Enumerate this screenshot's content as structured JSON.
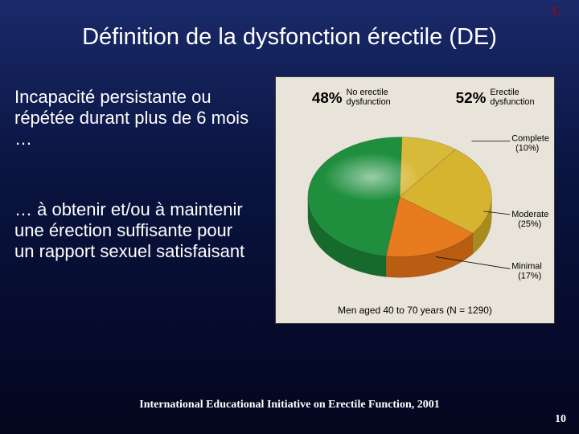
{
  "corner_letter": "U",
  "title": "Définition de la dysfonction érectile (DE)",
  "paragraph1": "Incapacité persistante ou répétée durant plus de 6 mois …",
  "paragraph2": "… à obtenir et/ou à maintenir une érection suffisante pour un rapport sexuel satisfaisant",
  "citation": "International Educational Initiative on Erectile Function, 2001",
  "page_number": "10",
  "chart": {
    "type": "pie",
    "background_color": "#e8e4da",
    "caption": "Men aged 40 to 70 years (N = 1290)",
    "caption_fontsize": 12,
    "left_pct_label": "48%",
    "left_pct_sub1": "No erectile",
    "left_pct_sub2": "dysfunction",
    "right_pct_label": "52%",
    "right_pct_sub1": "Erectile",
    "right_pct_sub2": "dysfunction",
    "slices": [
      {
        "name": "No erectile dysfunction",
        "value": 48,
        "fill": "#1f8f3e",
        "side": "#156a2c"
      },
      {
        "name": "Complete",
        "value": 10,
        "fill": "#d8ba3a",
        "side": "#b39726",
        "label_l1": "Complete",
        "label_l2": "(10%)"
      },
      {
        "name": "Moderate",
        "value": 25,
        "fill": "#d6b430",
        "side": "#a88b1f",
        "label_l1": "Moderate",
        "label_l2": "(25%)"
      },
      {
        "name": "Minimal",
        "value": 17,
        "fill": "#e87a1f",
        "side": "#b85d12",
        "label_l1": "Minimal",
        "label_l2": "(17%)"
      }
    ],
    "highlight_fill": "#f0da6a"
  }
}
